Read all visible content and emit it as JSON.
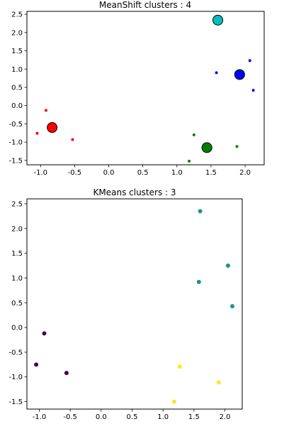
{
  "chart_data": [
    {
      "type": "scatter",
      "title": "MeanShift clusters : 4",
      "xlabel": "",
      "ylabel": "",
      "xlim": [
        -1.2,
        2.28
      ],
      "ylim": [
        -1.62,
        2.58
      ],
      "xticks": [
        -1.0,
        -0.5,
        0.0,
        0.5,
        1.0,
        1.5,
        2.0
      ],
      "yticks": [
        -1.5,
        -1.0,
        -0.5,
        0.0,
        0.5,
        1.0,
        1.5,
        2.0,
        2.5
      ],
      "points": [
        {
          "x": -0.92,
          "y": -0.13,
          "color": "#ff0000"
        },
        {
          "x": -1.05,
          "y": -0.76,
          "color": "#ff0000"
        },
        {
          "x": -0.53,
          "y": -0.93,
          "color": "#ff0000"
        },
        {
          "x": 1.25,
          "y": -0.8,
          "color": "#008000"
        },
        {
          "x": 1.88,
          "y": -1.12,
          "color": "#008000"
        },
        {
          "x": 1.18,
          "y": -1.52,
          "color": "#008000"
        },
        {
          "x": 1.58,
          "y": 0.9,
          "color": "#0000ff"
        },
        {
          "x": 2.07,
          "y": 1.23,
          "color": "#0000ff"
        },
        {
          "x": 2.12,
          "y": 0.42,
          "color": "#0000ff"
        }
      ],
      "centers": [
        {
          "x": -0.83,
          "y": -0.6,
          "color": "#ff0000"
        },
        {
          "x": 1.44,
          "y": -1.15,
          "color": "#008000"
        },
        {
          "x": 1.92,
          "y": 0.85,
          "color": "#0000ff"
        },
        {
          "x": 1.6,
          "y": 2.34,
          "color": "#00bfbf"
        }
      ]
    },
    {
      "type": "scatter",
      "title": "KMeans clusters : 3",
      "xlabel": "",
      "ylabel": "",
      "xlim": [
        -1.2,
        2.28
      ],
      "ylim": [
        -1.65,
        2.6
      ],
      "xticks": [
        -1.0,
        -0.5,
        0.0,
        0.5,
        1.0,
        1.5,
        2.0
      ],
      "yticks": [
        -1.5,
        -1.0,
        -0.5,
        0.0,
        0.5,
        1.0,
        1.5,
        2.0,
        2.5
      ],
      "points": [
        {
          "x": -0.92,
          "y": -0.12,
          "color": "#440154"
        },
        {
          "x": -1.05,
          "y": -0.75,
          "color": "#440154"
        },
        {
          "x": -0.56,
          "y": -0.92,
          "color": "#440154"
        },
        {
          "x": 1.6,
          "y": 2.35,
          "color": "#21918c"
        },
        {
          "x": 2.05,
          "y": 1.25,
          "color": "#21918c"
        },
        {
          "x": 1.58,
          "y": 0.92,
          "color": "#21918c"
        },
        {
          "x": 2.12,
          "y": 0.43,
          "color": "#21918c"
        },
        {
          "x": 1.27,
          "y": -0.79,
          "color": "#fde725"
        },
        {
          "x": 1.9,
          "y": -1.11,
          "color": "#fde725"
        },
        {
          "x": 1.18,
          "y": -1.5,
          "color": "#fde725"
        }
      ]
    }
  ]
}
